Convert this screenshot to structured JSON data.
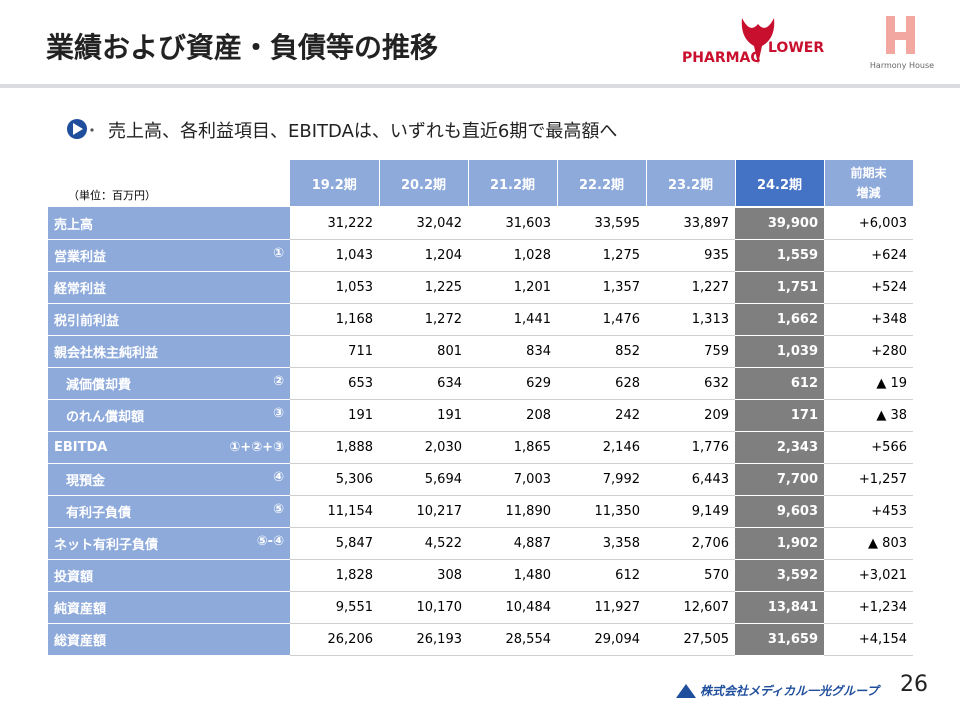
{
  "header": {
    "title": "業績および資産・負債等の推移",
    "logo_left_a": "PHARMAC",
    "logo_left_b": "LOWER",
    "logo_right": "Harmony House"
  },
  "bullet": "売上高、各利益項目、EBITDAは、いずれも直近6期で最高額へ",
  "table": {
    "unit": "（単位：百万円）",
    "columns": [
      "19.2期",
      "20.2期",
      "21.2期",
      "22.2期",
      "23.2期",
      "24.2期"
    ],
    "change_header": [
      "前期末",
      "増減"
    ],
    "rows": [
      {
        "label": "売上高",
        "values": [
          "31,222",
          "32,042",
          "31,603",
          "33,595",
          "33,897",
          "39,900"
        ],
        "change": "+6,003"
      },
      {
        "label": "営業利益",
        "note": "①",
        "values": [
          "1,043",
          "1,204",
          "1,028",
          "1,275",
          "935",
          "1,559"
        ],
        "change": "+624"
      },
      {
        "label": "経常利益",
        "values": [
          "1,053",
          "1,225",
          "1,201",
          "1,357",
          "1,227",
          "1,751"
        ],
        "change": "+524"
      },
      {
        "label": "税引前利益",
        "values": [
          "1,168",
          "1,272",
          "1,441",
          "1,476",
          "1,313",
          "1,662"
        ],
        "change": "+348"
      },
      {
        "label": "親会社株主純利益",
        "values": [
          "711",
          "801",
          "834",
          "852",
          "759",
          "1,039"
        ],
        "change": "+280"
      },
      {
        "label": "減価償却費",
        "indent": true,
        "note": "②",
        "values": [
          "653",
          "634",
          "629",
          "628",
          "632",
          "612"
        ],
        "change": "▲ 19"
      },
      {
        "label": "のれん償却額",
        "indent": true,
        "note": "③",
        "values": [
          "191",
          "191",
          "208",
          "242",
          "209",
          "171"
        ],
        "change": "▲ 38"
      },
      {
        "label": "EBITDA",
        "note": "①+②+③",
        "values": [
          "1,888",
          "2,030",
          "1,865",
          "2,146",
          "1,776",
          "2,343"
        ],
        "change": "+566"
      },
      {
        "label": "現預金",
        "indent": true,
        "note": "④",
        "values": [
          "5,306",
          "5,694",
          "7,003",
          "7,992",
          "6,443",
          "7,700"
        ],
        "change": "+1,257"
      },
      {
        "label": "有利子負債",
        "indent": true,
        "note": "⑤",
        "values": [
          "11,154",
          "10,217",
          "11,890",
          "11,350",
          "9,149",
          "9,603"
        ],
        "change": "+453"
      },
      {
        "label": "ネット有利子負債",
        "note": "⑤-④",
        "values": [
          "5,847",
          "4,522",
          "4,887",
          "3,358",
          "2,706",
          "1,902"
        ],
        "change": "▲ 803"
      },
      {
        "label": "投資額",
        "values": [
          "1,828",
          "308",
          "1,480",
          "612",
          "570",
          "3,592"
        ],
        "change": "+3,021"
      },
      {
        "label": "純資産額",
        "values": [
          "9,551",
          "10,170",
          "10,484",
          "11,927",
          "12,607",
          "13,841"
        ],
        "change": "+1,234"
      },
      {
        "label": "総資産額",
        "values": [
          "26,206",
          "26,193",
          "28,554",
          "29,094",
          "27,505",
          "31,659"
        ],
        "change": "+4,154"
      }
    ]
  },
  "footer": {
    "company": "株式会社メディカル一光グループ",
    "page": "26"
  }
}
